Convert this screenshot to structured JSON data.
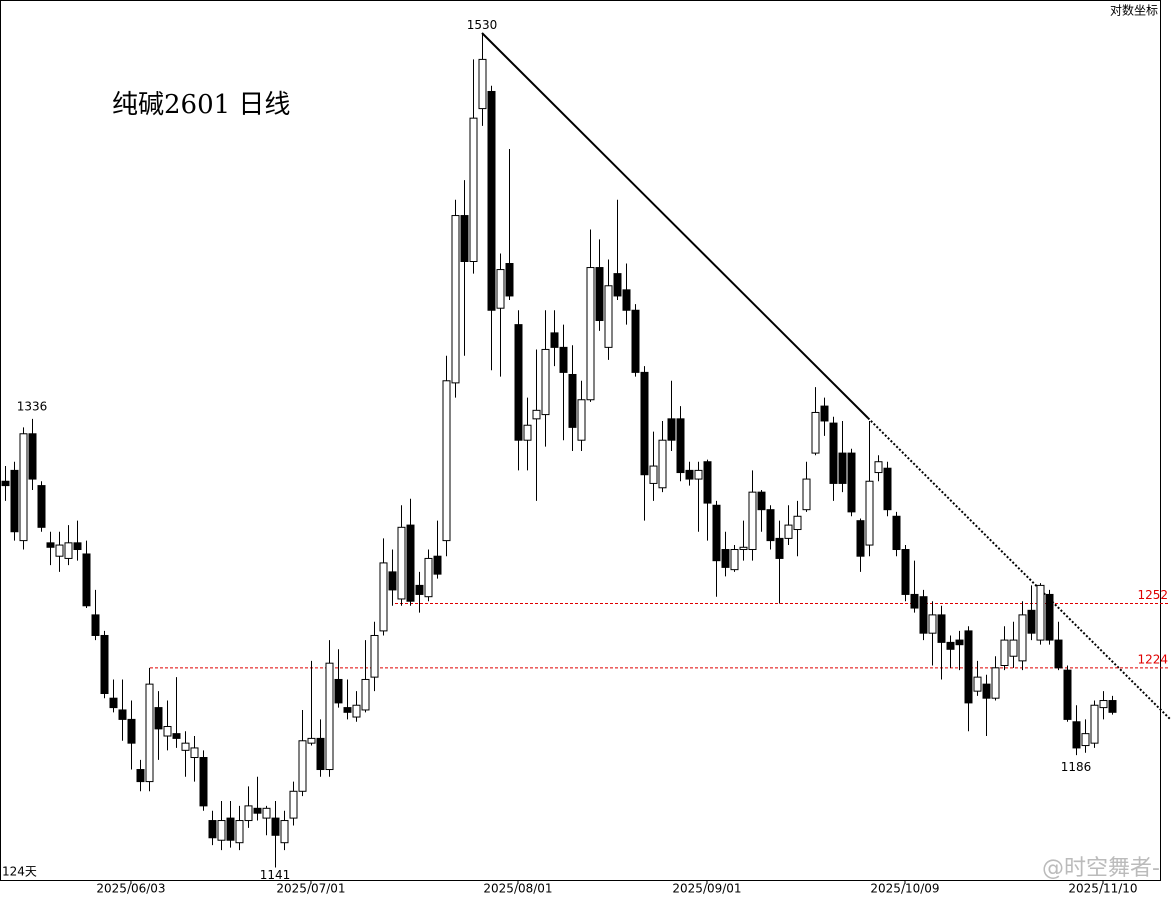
{
  "chart_data": {
    "type": "candlestick",
    "title": "纯碱2601  日线",
    "scale_label": "对数坐标",
    "period_label": "124天",
    "watermark": "@时空舞者-",
    "log_scale": true,
    "ylim": [
      1136,
      1548
    ],
    "up_color": "#ffffff",
    "down_color": "#000000",
    "categories": [
      null,
      null,
      null,
      null,
      null,
      null,
      null,
      null,
      null,
      null,
      null,
      null,
      null,
      null,
      "2025/06/03",
      null,
      null,
      null,
      null,
      null,
      null,
      null,
      null,
      null,
      null,
      null,
      null,
      null,
      null,
      null,
      null,
      null,
      null,
      null,
      "2025/07/01",
      null,
      null,
      null,
      null,
      null,
      null,
      null,
      null,
      null,
      null,
      null,
      null,
      null,
      null,
      null,
      null,
      null,
      null,
      null,
      null,
      null,
      null,
      "2025/08/01",
      null,
      null,
      null,
      null,
      null,
      null,
      null,
      null,
      null,
      null,
      null,
      null,
      null,
      null,
      null,
      null,
      null,
      null,
      null,
      null,
      "2025/09/01",
      null,
      null,
      null,
      null,
      null,
      null,
      null,
      null,
      null,
      null,
      null,
      null,
      null,
      null,
      null,
      null,
      null,
      null,
      null,
      null,
      null,
      "2025/10/09",
      null,
      null,
      null,
      null,
      null,
      null,
      null,
      null,
      null,
      null,
      null,
      null,
      null,
      null,
      null,
      null,
      null,
      null,
      null,
      null,
      null,
      "2025/11/10",
      null
    ],
    "open": [
      1307,
      1312,
      1280,
      1329,
      1305,
      1279,
      1273,
      1272,
      1279,
      1274,
      1247,
      1238,
      1211,
      1206,
      1202,
      1181,
      1176,
      1207,
      1195,
      1196,
      1189,
      1186,
      1186,
      1160,
      1152,
      1161,
      1151,
      1160,
      1165,
      1161,
      1161,
      1151,
      1161,
      1172,
      1192,
      1194,
      1181,
      1219,
      1207,
      1203,
      1206,
      1220,
      1240,
      1266,
      1254,
      1287,
      1260,
      1255,
      1273,
      1280,
      1353,
      1435,
      1412,
      1490,
      1499,
      1389,
      1411,
      1381,
      1326,
      1336,
      1338,
      1377,
      1370,
      1357,
      1326,
      1345,
      1409,
      1370,
      1406,
      1398,
      1388,
      1358,
      1306,
      1304,
      1336,
      1336,
      1312,
      1308,
      1316,
      1296,
      1276,
      1267,
      1276,
      1276,
      1302,
      1294,
      1281,
      1281,
      1285,
      1294,
      1320,
      1342,
      1334,
      1320,
      1320,
      1289,
      1278,
      1311,
      1313,
      1291,
      1276,
      1256,
      1255,
      1239,
      1247,
      1235,
      1236,
      1240,
      1214,
      1217,
      1211,
      1225,
      1229,
      1227,
      1249,
      1236,
      1256,
      1236,
      1223,
      1201,
      1191,
      1192,
      1207,
      1210
    ],
    "high": [
      1314,
      1316,
      1332,
      1336,
      1307,
      1284,
      1284,
      1287,
      1289,
      1280,
      1258,
      1240,
      1219,
      1219,
      1210,
      1185,
      1224,
      1214,
      1210,
      1220,
      1197,
      1195,
      1189,
      1164,
      1168,
      1168,
      1166,
      1174,
      1178,
      1166,
      1168,
      1164,
      1176,
      1206,
      1227,
      1202,
      1236,
      1232,
      1219,
      1214,
      1236,
      1244,
      1281,
      1276,
      1296,
      1299,
      1266,
      1276,
      1289,
      1366,
      1443,
      1453,
      1516,
      1530,
      1502,
      1416,
      1469,
      1388,
      1346,
      1369,
      1388,
      1388,
      1381,
      1371,
      1354,
      1428,
      1423,
      1413,
      1443,
      1411,
      1391,
      1361,
      1330,
      1335,
      1354,
      1342,
      1316,
      1316,
      1317,
      1298,
      1284,
      1278,
      1289,
      1312,
      1303,
      1296,
      1289,
      1296,
      1298,
      1316,
      1351,
      1346,
      1337,
      1335,
      1322,
      1290,
      1335,
      1319,
      1316,
      1293,
      1278,
      1271,
      1258,
      1253,
      1251,
      1238,
      1240,
      1242,
      1227,
      1221,
      1229,
      1242,
      1244,
      1253,
      1260,
      1261,
      1258,
      1244,
      1225,
      1208,
      1202,
      1210,
      1214,
      1212
    ],
    "low": [
      1298,
      1280,
      1276,
      1303,
      1284,
      1269,
      1266,
      1269,
      1271,
      1250,
      1236,
      1211,
      1205,
      1193,
      1181,
      1172,
      1172,
      1185,
      1189,
      1190,
      1178,
      1176,
      1164,
      1150,
      1148,
      1149,
      1148,
      1157,
      1160,
      1154,
      1141,
      1148,
      1158,
      1170,
      1191,
      1178,
      1178,
      1207,
      1202,
      1201,
      1205,
      1214,
      1238,
      1251,
      1251,
      1251,
      1248,
      1253,
      1263,
      1273,
      1346,
      1366,
      1406,
      1481,
      1359,
      1356,
      1393,
      1312,
      1312,
      1298,
      1323,
      1361,
      1326,
      1321,
      1321,
      1344,
      1378,
      1364,
      1393,
      1381,
      1356,
      1289,
      1298,
      1302,
      1321,
      1307,
      1305,
      1284,
      1280,
      1255,
      1264,
      1266,
      1271,
      1271,
      1284,
      1276,
      1252,
      1278,
      1273,
      1293,
      1319,
      1328,
      1298,
      1302,
      1291,
      1266,
      1273,
      1307,
      1291,
      1273,
      1253,
      1248,
      1236,
      1225,
      1219,
      1224,
      1223,
      1197,
      1212,
      1195,
      1210,
      1223,
      1224,
      1223,
      1236,
      1234,
      1234,
      1223,
      1201,
      1187,
      1188,
      1190,
      1202,
      1204
    ],
    "close": [
      1305,
      1284,
      1329,
      1308,
      1286,
      1277,
      1278,
      1279,
      1276,
      1251,
      1238,
      1213,
      1207,
      1202,
      1192,
      1176,
      1217,
      1198,
      1199,
      1194,
      1192,
      1190,
      1166,
      1153,
      1160,
      1152,
      1160,
      1166,
      1163,
      1165,
      1154,
      1160,
      1172,
      1193,
      1194,
      1181,
      1226,
      1209,
      1205,
      1208,
      1219,
      1238,
      1270,
      1258,
      1286,
      1253,
      1256,
      1272,
      1265,
      1354,
      1435,
      1412,
      1485,
      1516,
      1388,
      1408,
      1395,
      1326,
      1333,
      1340,
      1369,
      1370,
      1358,
      1332,
      1345,
      1409,
      1383,
      1400,
      1395,
      1388,
      1358,
      1310,
      1314,
      1326,
      1326,
      1311,
      1308,
      1312,
      1297,
      1271,
      1268,
      1276,
      1277,
      1302,
      1294,
      1280,
      1272,
      1287,
      1291,
      1308,
      1339,
      1335,
      1306,
      1306,
      1293,
      1273,
      1307,
      1316,
      1294,
      1276,
      1256,
      1250,
      1239,
      1247,
      1235,
      1232,
      1234,
      1209,
      1220,
      1211,
      1224,
      1236,
      1236,
      1247,
      1239,
      1260,
      1236,
      1224,
      1202,
      1190,
      1196,
      1208,
      1210,
      1205
    ],
    "hlines": [
      1252,
      1224
    ],
    "hline_color": "#e00000",
    "annotations": [
      1530,
      1336,
      1141,
      1186
    ]
  }
}
